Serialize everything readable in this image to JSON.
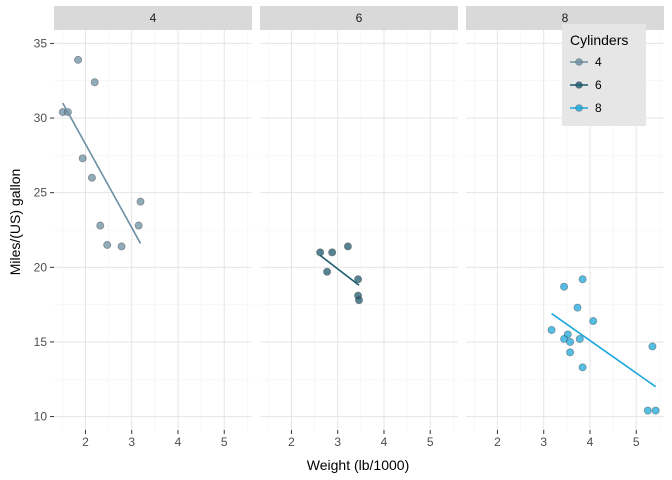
{
  "chart_data": {
    "type": "scatter",
    "xlabel": "Weight (lb/1000)",
    "ylabel": "Miles/(US) gallon",
    "xlim": [
      1.32,
      5.6
    ],
    "ylim": [
      9.1,
      35.9
    ],
    "xticks": [
      2,
      3,
      4,
      5
    ],
    "yticks": [
      10,
      15,
      20,
      25,
      30,
      35
    ],
    "grid": true,
    "legend": {
      "title": "Cylinders",
      "position": "top-right",
      "entries": [
        "4",
        "6",
        "8"
      ]
    },
    "colors": {
      "4": "#6b8fa3",
      "6": "#1e5a6e",
      "8": "#1ca8dc"
    },
    "panels": [
      {
        "strip": "4",
        "points": [
          [
            1.51,
            30.4
          ],
          [
            1.62,
            30.4
          ],
          [
            1.84,
            33.9
          ],
          [
            1.94,
            27.3
          ],
          [
            2.14,
            26.0
          ],
          [
            2.2,
            32.4
          ],
          [
            2.32,
            22.8
          ],
          [
            2.47,
            21.5
          ],
          [
            2.78,
            21.4
          ],
          [
            3.15,
            22.8
          ],
          [
            3.19,
            24.4
          ]
        ],
        "trend": [
          [
            1.51,
            31.0
          ],
          [
            3.19,
            21.6
          ]
        ]
      },
      {
        "strip": "6",
        "points": [
          [
            2.62,
            21.0
          ],
          [
            2.77,
            19.7
          ],
          [
            2.88,
            21.0
          ],
          [
            3.22,
            21.4
          ],
          [
            3.44,
            18.1
          ],
          [
            3.44,
            19.2
          ],
          [
            3.46,
            17.8
          ]
        ],
        "trend": [
          [
            2.62,
            20.8
          ],
          [
            3.46,
            18.8
          ]
        ]
      },
      {
        "strip": "8",
        "points": [
          [
            3.17,
            15.8
          ],
          [
            3.44,
            18.7
          ],
          [
            3.52,
            15.5
          ],
          [
            3.44,
            15.2
          ],
          [
            3.57,
            14.3
          ],
          [
            3.57,
            15.0
          ],
          [
            3.73,
            17.3
          ],
          [
            3.78,
            15.2
          ],
          [
            3.84,
            13.3
          ],
          [
            3.84,
            19.2
          ],
          [
            4.07,
            16.4
          ],
          [
            5.25,
            10.4
          ],
          [
            5.35,
            14.7
          ],
          [
            5.42,
            10.4
          ]
        ],
        "trend": [
          [
            3.17,
            16.9
          ],
          [
            5.42,
            12.0
          ]
        ]
      }
    ]
  }
}
